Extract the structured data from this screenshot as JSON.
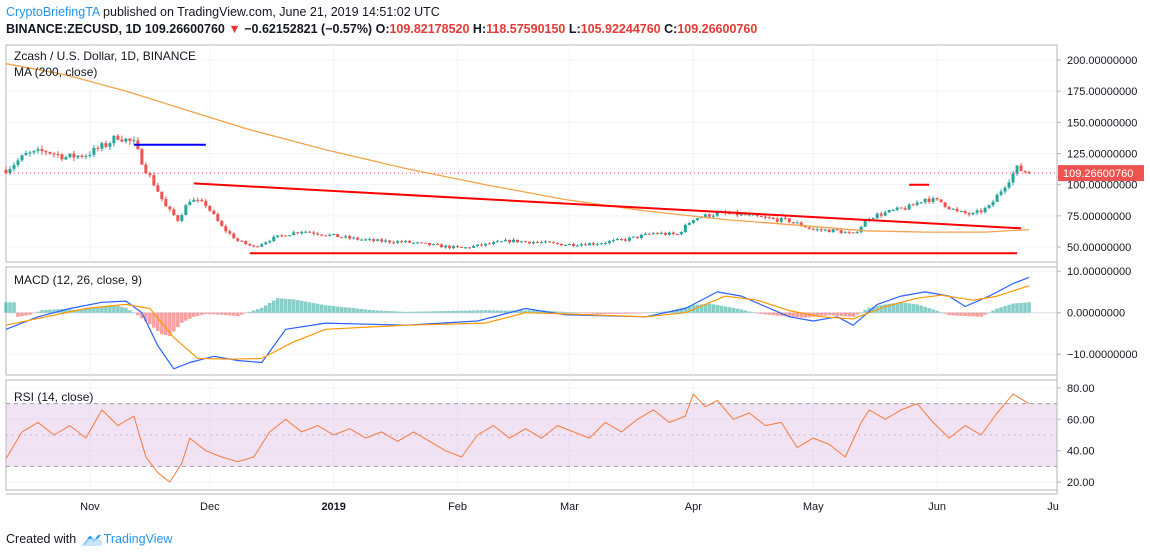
{
  "header": {
    "brand": "CryptoBriefingTA",
    "published": " published on TradingView.com, June 21, 2019 14:51:02 UTC",
    "symbol": "BINANCE:ZECUSD, 1D",
    "last": "109.26600760",
    "change_arrow": "▼",
    "change": "−0.62152821 (−0.57%)",
    "o_label": "O:",
    "o": "109.82178520",
    "h_label": "H:",
    "h": "118.57590150",
    "l_label": "L:",
    "l": "105.92244760",
    "c_label": "C:",
    "c": "109.26600760"
  },
  "footer": {
    "created_with": "Created with",
    "brand": "TradingView",
    "logo_icon": "tradingview-cloud-icon"
  },
  "chart_data": {
    "type": "line",
    "title": "Zcash / U.S. Dollar, 1D, BINANCE",
    "colors": {
      "up": "#26a69a",
      "down": "#ef5350",
      "ma": "#f5a34a",
      "macd": "#2962ff",
      "signal": "#ff9800",
      "rsi": "#f57c3a",
      "trend": "#ff0000",
      "hline": "#0000ff",
      "rsi_band": "#e1bee7"
    },
    "last_price_label": "109.26600760",
    "x_ticks": [
      "Nov",
      "Dec",
      "2019",
      "Feb",
      "Mar",
      "Apr",
      "May",
      "Jun",
      "Ju"
    ],
    "x_tick_days": [
      21,
      51,
      82,
      113,
      141,
      172,
      202,
      233,
      263
    ],
    "days_range": [
      0,
      263
    ],
    "price": {
      "ylim": [
        38,
        212
      ],
      "yticks": [
        {
          "v": 50,
          "label": "50.00000000"
        },
        {
          "v": 75,
          "label": "75.00000000"
        },
        {
          "v": 100,
          "label": "100.00000000"
        },
        {
          "v": 125,
          "label": "125.00000000"
        },
        {
          "v": 150,
          "label": "150.00000000"
        },
        {
          "v": 175,
          "label": "175.00000000"
        },
        {
          "v": 200,
          "label": "200.00000000"
        }
      ],
      "indicator_label": "MA (200, close)",
      "close_keypoints": [
        [
          0,
          112
        ],
        [
          5,
          124
        ],
        [
          10,
          127
        ],
        [
          15,
          122
        ],
        [
          20,
          124
        ],
        [
          25,
          132
        ],
        [
          28,
          139
        ],
        [
          32,
          133
        ],
        [
          35,
          112
        ],
        [
          38,
          95
        ],
        [
          40,
          82
        ],
        [
          43,
          72
        ],
        [
          46,
          88
        ],
        [
          50,
          84
        ],
        [
          54,
          66
        ],
        [
          58,
          55
        ],
        [
          62,
          50
        ],
        [
          66,
          56
        ],
        [
          70,
          60
        ],
        [
          74,
          63
        ],
        [
          80,
          60
        ],
        [
          86,
          57
        ],
        [
          92,
          55
        ],
        [
          100,
          54
        ],
        [
          108,
          51
        ],
        [
          114,
          49
        ],
        [
          120,
          52
        ],
        [
          126,
          55
        ],
        [
          132,
          54
        ],
        [
          140,
          52
        ],
        [
          148,
          53
        ],
        [
          155,
          56
        ],
        [
          162,
          61
        ],
        [
          168,
          60
        ],
        [
          172,
          73
        ],
        [
          178,
          77
        ],
        [
          184,
          76
        ],
        [
          190,
          73
        ],
        [
          196,
          71
        ],
        [
          202,
          64
        ],
        [
          208,
          63
        ],
        [
          212,
          60
        ],
        [
          216,
          74
        ],
        [
          222,
          79
        ],
        [
          226,
          82
        ],
        [
          230,
          89
        ],
        [
          234,
          86
        ],
        [
          238,
          78
        ],
        [
          242,
          76
        ],
        [
          246,
          82
        ],
        [
          250,
          100
        ],
        [
          253,
          113
        ],
        [
          256,
          109.27
        ]
      ],
      "ma200": [
        [
          0,
          197
        ],
        [
          15,
          188
        ],
        [
          30,
          175
        ],
        [
          45,
          160
        ],
        [
          60,
          145
        ],
        [
          80,
          128
        ],
        [
          100,
          113
        ],
        [
          120,
          100
        ],
        [
          140,
          88
        ],
        [
          160,
          79
        ],
        [
          180,
          72
        ],
        [
          200,
          67
        ],
        [
          215,
          63
        ],
        [
          230,
          62
        ],
        [
          245,
          62
        ],
        [
          256,
          64
        ]
      ],
      "trendlines": [
        {
          "points": [
            [
              47,
              101
            ],
            [
              254,
              65
            ]
          ]
        },
        {
          "points": [
            [
              61,
              45
            ],
            [
              253,
              45
            ]
          ]
        },
        {
          "points": [
            [
              32,
              132
            ],
            [
              50,
              132
            ]
          ]
        },
        {
          "points": [
            [
              226,
              100
            ],
            [
              231,
              100
            ]
          ]
        }
      ]
    },
    "macd": {
      "indicator_label": "MACD (12, 26, close, 9)",
      "ylim": [
        -15,
        11
      ],
      "yticks": [
        {
          "v": -10,
          "label": "−10.00000000"
        },
        {
          "v": 0,
          "label": "0.00000000"
        },
        {
          "v": 10,
          "label": "10.00000000"
        }
      ],
      "macd_line": [
        [
          0,
          -4
        ],
        [
          8,
          -1
        ],
        [
          16,
          1
        ],
        [
          24,
          2.5
        ],
        [
          30,
          2.8
        ],
        [
          34,
          0
        ],
        [
          38,
          -8
        ],
        [
          42,
          -13.5
        ],
        [
          46,
          -12
        ],
        [
          52,
          -10.5
        ],
        [
          58,
          -11.5
        ],
        [
          64,
          -12
        ],
        [
          70,
          -4
        ],
        [
          80,
          -2.5
        ],
        [
          100,
          -3
        ],
        [
          118,
          -2
        ],
        [
          130,
          1
        ],
        [
          140,
          -0.5
        ],
        [
          160,
          -1
        ],
        [
          170,
          1
        ],
        [
          178,
          5
        ],
        [
          184,
          4
        ],
        [
          190,
          1.5
        ],
        [
          196,
          -1
        ],
        [
          202,
          -2
        ],
        [
          208,
          -1
        ],
        [
          212,
          -3
        ],
        [
          218,
          2
        ],
        [
          224,
          4
        ],
        [
          230,
          5
        ],
        [
          236,
          4
        ],
        [
          240,
          1.5
        ],
        [
          246,
          4
        ],
        [
          252,
          7
        ],
        [
          256,
          8.5
        ]
      ],
      "signal_line": [
        [
          0,
          -3
        ],
        [
          10,
          -1
        ],
        [
          20,
          1
        ],
        [
          30,
          2
        ],
        [
          36,
          1
        ],
        [
          42,
          -6
        ],
        [
          48,
          -11
        ],
        [
          56,
          -11.2
        ],
        [
          64,
          -11
        ],
        [
          72,
          -7
        ],
        [
          80,
          -4
        ],
        [
          100,
          -3
        ],
        [
          120,
          -2.5
        ],
        [
          130,
          0
        ],
        [
          140,
          -0.3
        ],
        [
          160,
          -1
        ],
        [
          170,
          0
        ],
        [
          180,
          4
        ],
        [
          188,
          3
        ],
        [
          196,
          0.5
        ],
        [
          204,
          -1
        ],
        [
          212,
          -1.5
        ],
        [
          220,
          1.5
        ],
        [
          228,
          3.5
        ],
        [
          234,
          4.2
        ],
        [
          242,
          3
        ],
        [
          248,
          4
        ],
        [
          256,
          6.5
        ]
      ],
      "histogram": [
        [
          3,
          -1
        ],
        [
          6,
          -0.5
        ],
        [
          9,
          0.6
        ],
        [
          12,
          0.8
        ],
        [
          15,
          0.9
        ],
        [
          18,
          0.6
        ],
        [
          21,
          1.1
        ],
        [
          24,
          1.4
        ],
        [
          27,
          1.8
        ],
        [
          30,
          1.2
        ],
        [
          33,
          -0.6
        ],
        [
          36,
          -2.8
        ],
        [
          39,
          -5.2
        ],
        [
          41,
          -5.6
        ],
        [
          44,
          -2.4
        ],
        [
          47,
          -1
        ],
        [
          50,
          -0.3
        ],
        [
          54,
          -0.5
        ],
        [
          58,
          -0.8
        ],
        [
          64,
          1.2
        ],
        [
          68,
          3.5
        ],
        [
          72,
          3.2
        ],
        [
          76,
          2.5
        ],
        [
          80,
          1.8
        ],
        [
          86,
          1.2
        ],
        [
          92,
          0.6
        ],
        [
          100,
          0.2
        ],
        [
          110,
          0.4
        ],
        [
          120,
          0.6
        ],
        [
          126,
          0.5
        ],
        [
          132,
          0.6
        ],
        [
          138,
          0.3
        ],
        [
          148,
          -0.3
        ],
        [
          158,
          -0.2
        ],
        [
          166,
          0.4
        ],
        [
          172,
          1.8
        ],
        [
          176,
          2.2
        ],
        [
          180,
          1.5
        ],
        [
          184,
          0.8
        ],
        [
          188,
          -0.2
        ],
        [
          194,
          -0.8
        ],
        [
          200,
          -1.2
        ],
        [
          206,
          -0.6
        ],
        [
          212,
          -1
        ],
        [
          216,
          1.2
        ],
        [
          220,
          2
        ],
        [
          224,
          2.5
        ],
        [
          228,
          2
        ],
        [
          232,
          0.8
        ],
        [
          236,
          -0.6
        ],
        [
          240,
          -0.8
        ],
        [
          244,
          -1
        ],
        [
          248,
          1
        ],
        [
          252,
          2.2
        ],
        [
          256,
          2.5
        ]
      ]
    },
    "rsi": {
      "indicator_label": "RSI (14, close)",
      "ylim": [
        15,
        85
      ],
      "band": [
        30,
        70
      ],
      "yticks": [
        {
          "v": 20,
          "label": "20.00"
        },
        {
          "v": 40,
          "label": "40.00"
        },
        {
          "v": 60,
          "label": "60.00"
        },
        {
          "v": 80,
          "label": "80.00"
        }
      ],
      "values": [
        [
          0,
          35
        ],
        [
          4,
          52
        ],
        [
          8,
          58
        ],
        [
          12,
          50
        ],
        [
          16,
          56
        ],
        [
          20,
          48
        ],
        [
          24,
          66
        ],
        [
          28,
          56
        ],
        [
          32,
          62
        ],
        [
          35,
          36
        ],
        [
          38,
          26
        ],
        [
          41,
          20
        ],
        [
          44,
          32
        ],
        [
          46,
          48
        ],
        [
          50,
          40
        ],
        [
          54,
          36
        ],
        [
          58,
          33
        ],
        [
          62,
          36
        ],
        [
          66,
          52
        ],
        [
          70,
          60
        ],
        [
          74,
          52
        ],
        [
          78,
          56
        ],
        [
          82,
          50
        ],
        [
          86,
          54
        ],
        [
          90,
          48
        ],
        [
          94,
          52
        ],
        [
          98,
          46
        ],
        [
          102,
          52
        ],
        [
          106,
          46
        ],
        [
          110,
          40
        ],
        [
          114,
          36
        ],
        [
          118,
          50
        ],
        [
          122,
          56
        ],
        [
          126,
          48
        ],
        [
          130,
          54
        ],
        [
          134,
          48
        ],
        [
          138,
          56
        ],
        [
          142,
          52
        ],
        [
          146,
          48
        ],
        [
          150,
          58
        ],
        [
          154,
          52
        ],
        [
          158,
          60
        ],
        [
          162,
          66
        ],
        [
          166,
          58
        ],
        [
          170,
          62
        ],
        [
          172,
          76
        ],
        [
          175,
          68
        ],
        [
          178,
          72
        ],
        [
          182,
          60
        ],
        [
          186,
          64
        ],
        [
          190,
          56
        ],
        [
          194,
          58
        ],
        [
          198,
          42
        ],
        [
          202,
          48
        ],
        [
          206,
          44
        ],
        [
          210,
          36
        ],
        [
          214,
          58
        ],
        [
          216,
          66
        ],
        [
          220,
          60
        ],
        [
          224,
          66
        ],
        [
          228,
          70
        ],
        [
          232,
          58
        ],
        [
          236,
          48
        ],
        [
          240,
          56
        ],
        [
          244,
          50
        ],
        [
          248,
          64
        ],
        [
          252,
          76
        ],
        [
          256,
          70
        ]
      ]
    }
  }
}
